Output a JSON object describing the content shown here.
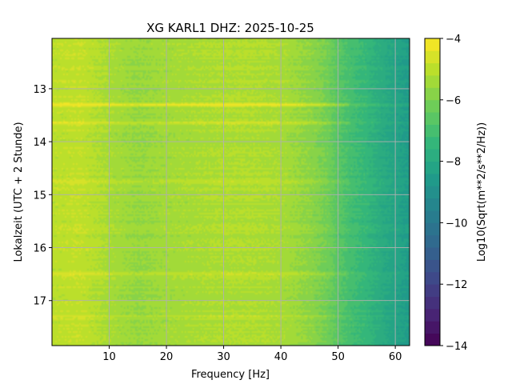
{
  "chart_data": {
    "type": "heatmap",
    "title": "XG KARL1  DHZ: 2025-10-25",
    "xlabel": "Frequency [Hz]",
    "ylabel": "Lokalzeit (UTC + 2 Stunde)",
    "xlim": [
      0,
      62.5
    ],
    "ylim": [
      17.85,
      12.05
    ],
    "xticks": [
      10,
      20,
      30,
      40,
      50,
      60
    ],
    "yticks": [
      13,
      14,
      15,
      16,
      17
    ],
    "grid": true,
    "colorbar": {
      "label": "Log10(Sqrt(m**2/s**2/Hz))",
      "range": [
        -14,
        -4
      ],
      "ticks": [
        -4,
        -6,
        -8,
        -10,
        -12,
        -14
      ],
      "levels": 25,
      "colormap": "viridis"
    },
    "spectrum_profile": [
      {
        "frequency": 0,
        "value": -5.0
      },
      {
        "frequency": 5,
        "value": -4.9
      },
      {
        "frequency": 10,
        "value": -5.3
      },
      {
        "frequency": 15,
        "value": -5.6
      },
      {
        "frequency": 20,
        "value": -5.4
      },
      {
        "frequency": 25,
        "value": -5.3
      },
      {
        "frequency": 30,
        "value": -5.2
      },
      {
        "frequency": 35,
        "value": -5.2
      },
      {
        "frequency": 40,
        "value": -5.3
      },
      {
        "frequency": 45,
        "value": -5.7
      },
      {
        "frequency": 48,
        "value": -6.1
      },
      {
        "frequency": 50,
        "value": -6.6
      },
      {
        "frequency": 52,
        "value": -7.0
      },
      {
        "frequency": 55,
        "value": -7.4
      },
      {
        "frequency": 58,
        "value": -7.9
      },
      {
        "frequency": 60,
        "value": -8.2
      },
      {
        "frequency": 62.5,
        "value": -8.5
      }
    ],
    "events": [
      {
        "time": 13.3,
        "value_shift": 1.1,
        "note": "broadband high-amplitude band"
      },
      {
        "time": 13.65,
        "value_shift": 0.7
      },
      {
        "time": 14.75,
        "value_shift": 0.4
      },
      {
        "time": 16.5,
        "value_shift": 0.4
      },
      {
        "time": 17.3,
        "value_shift": 0.3
      }
    ]
  }
}
